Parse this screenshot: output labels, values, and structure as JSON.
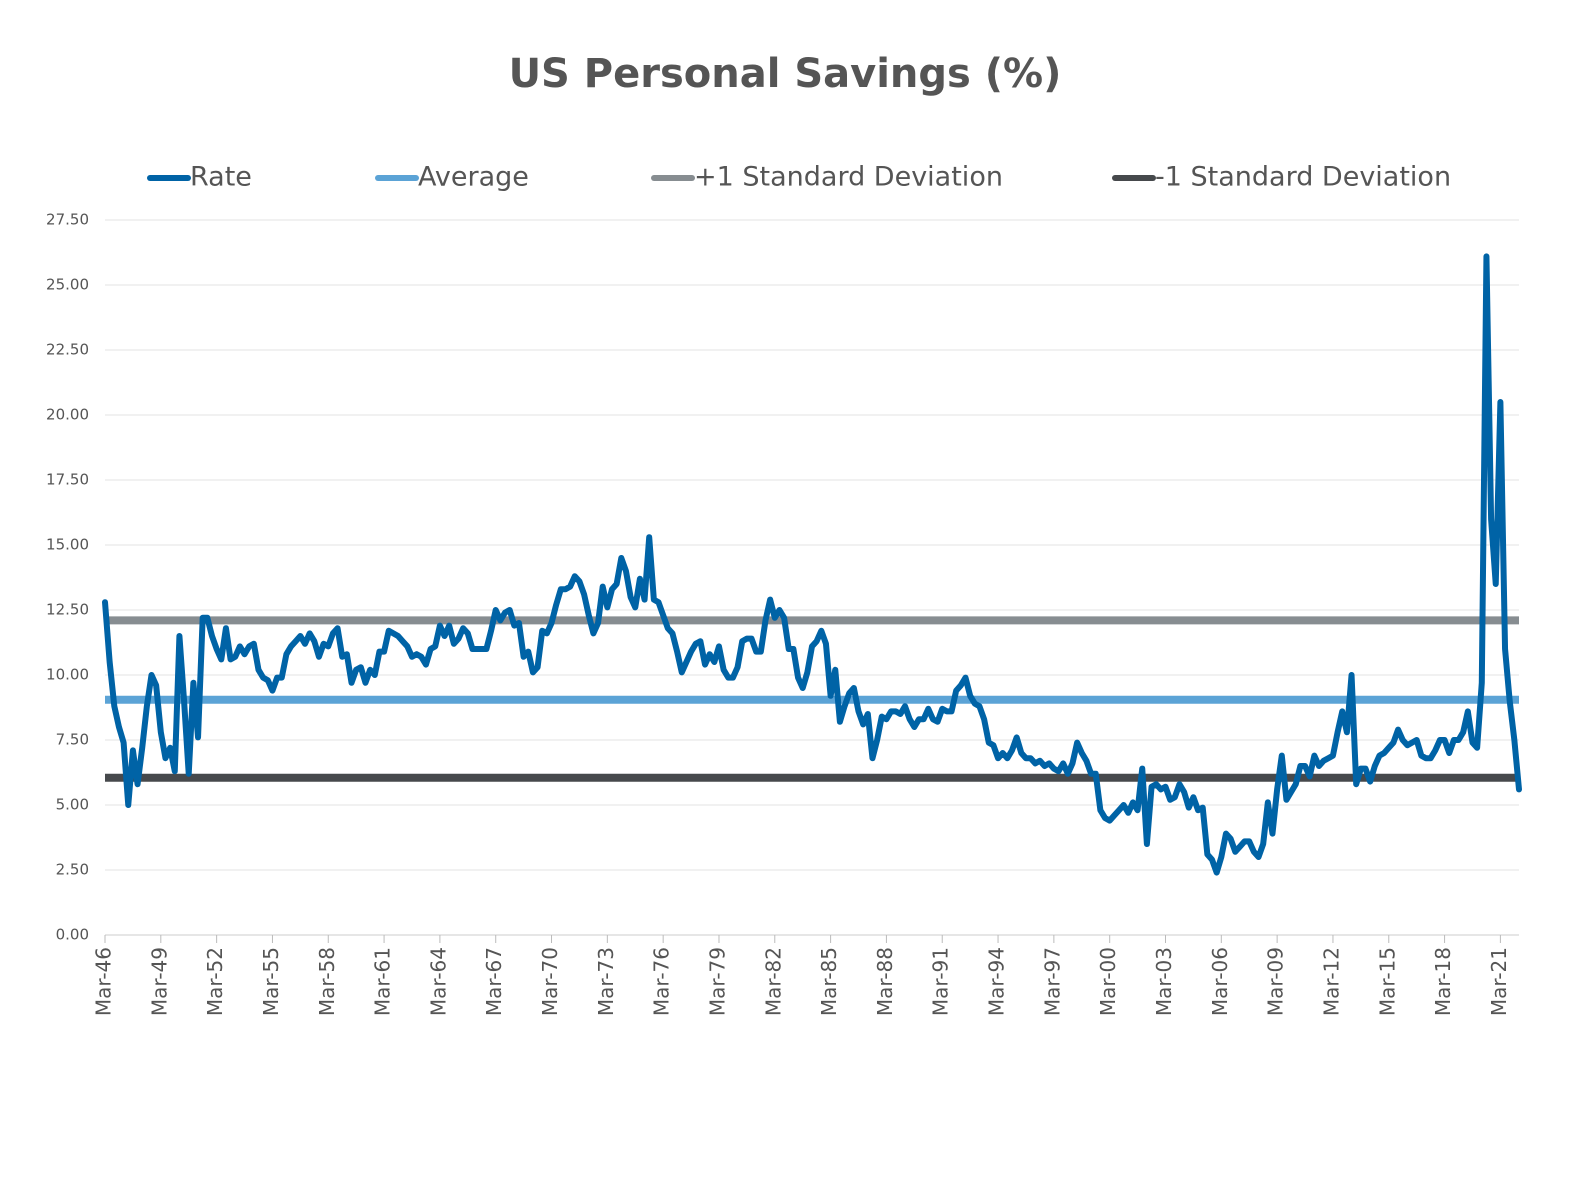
{
  "chart_data": {
    "type": "line",
    "title": "US Personal Savings (%)",
    "categories": [
      "Mar-46",
      null,
      null,
      null,
      null,
      null,
      null,
      null,
      null,
      null,
      null,
      null,
      "Mar-49",
      null,
      null,
      null,
      null,
      null,
      null,
      null,
      null,
      null,
      null,
      null,
      "Mar-52",
      null,
      null,
      null,
      null,
      null,
      null,
      null,
      null,
      null,
      null,
      null,
      "Mar-55",
      null,
      null,
      null,
      null,
      null,
      null,
      null,
      null,
      null,
      null,
      null,
      "Mar-58",
      null,
      null,
      null,
      null,
      null,
      null,
      null,
      null,
      null,
      null,
      null,
      "Mar-61",
      null,
      null,
      null,
      null,
      null,
      null,
      null,
      null,
      null,
      null,
      null,
      "Mar-64",
      null,
      null,
      null,
      null,
      null,
      null,
      null,
      null,
      null,
      null,
      null,
      "Mar-67",
      null,
      null,
      null,
      null,
      null,
      null,
      null,
      null,
      null,
      null,
      null,
      "Mar-70",
      null,
      null,
      null,
      null,
      null,
      null,
      null,
      null,
      null,
      null,
      null,
      "Mar-73",
      null,
      null,
      null,
      null,
      null,
      null,
      null,
      null,
      null,
      null,
      null,
      "Mar-76",
      null,
      null,
      null,
      null,
      null,
      null,
      null,
      null,
      null,
      null,
      null,
      "Mar-79",
      null,
      null,
      null,
      null,
      null,
      null,
      null,
      null,
      null,
      null,
      null,
      "Mar-82",
      null,
      null,
      null,
      null,
      null,
      null,
      null,
      null,
      null,
      null,
      null,
      "Mar-85",
      null,
      null,
      null,
      null,
      null,
      null,
      null,
      null,
      null,
      null,
      null,
      "Mar-88",
      null,
      null,
      null,
      null,
      null,
      null,
      null,
      null,
      null,
      null,
      null,
      "Mar-91",
      null,
      null,
      null,
      null,
      null,
      null,
      null,
      null,
      null,
      null,
      null,
      "Mar-94",
      null,
      null,
      null,
      null,
      null,
      null,
      null,
      null,
      null,
      null,
      null,
      "Mar-97",
      null,
      null,
      null,
      null,
      null,
      null,
      null,
      null,
      null,
      null,
      null,
      "Mar-00",
      null,
      null,
      null,
      null,
      null,
      null,
      null,
      null,
      null,
      null,
      null,
      "Mar-03",
      null,
      null,
      null,
      null,
      null,
      null,
      null,
      null,
      null,
      null,
      null,
      "Mar-06",
      null,
      null,
      null,
      null,
      null,
      null,
      null,
      null,
      null,
      null,
      null,
      "Mar-09",
      null,
      null,
      null,
      null,
      null,
      null,
      null,
      null,
      null,
      null,
      null,
      "Mar-12",
      null,
      null,
      null,
      null,
      null,
      null,
      null,
      null,
      null,
      null,
      null,
      "Mar-15",
      null,
      null,
      null,
      null,
      null,
      null,
      null,
      null,
      null,
      null,
      null,
      "Mar-18",
      null,
      null,
      null,
      null,
      null,
      null,
      null,
      null,
      null,
      null,
      null,
      "Mar-21",
      null,
      null,
      null,
      null
    ],
    "series": [
      {
        "name": "Rate",
        "color": "#0063a6",
        "values": [
          12.8,
          10.5,
          8.8,
          8.0,
          7.4,
          5.0,
          7.1,
          5.8,
          7.2,
          8.8,
          10.0,
          9.6,
          7.8,
          6.8,
          7.2,
          6.3,
          11.5,
          9.0,
          6.2,
          9.7,
          7.6,
          12.2,
          12.2,
          11.5,
          11.0,
          10.6,
          11.8,
          10.6,
          10.7,
          11.1,
          10.8,
          11.1,
          11.2,
          10.2,
          9.9,
          9.8,
          9.4,
          9.9,
          9.9,
          10.8,
          11.1,
          11.3,
          11.5,
          11.2,
          11.6,
          11.3,
          10.7,
          11.2,
          11.1,
          11.6,
          11.8,
          10.7,
          10.8,
          9.7,
          10.2,
          10.3,
          9.7,
          10.2,
          10.0,
          10.9,
          10.9,
          11.7,
          11.6,
          11.5,
          11.3,
          11.1,
          10.7,
          10.8,
          10.7,
          10.4,
          11.0,
          11.1,
          11.9,
          11.5,
          11.9,
          11.2,
          11.4,
          11.8,
          11.6,
          11.0,
          11.0,
          11.0,
          11.0,
          11.7,
          12.5,
          12.1,
          12.4,
          12.5,
          11.9,
          12.0,
          10.7,
          10.9,
          10.1,
          10.3,
          11.7,
          11.6,
          12.0,
          12.7,
          13.3,
          13.3,
          13.4,
          13.8,
          13.6,
          13.1,
          12.3,
          11.6,
          12.0,
          13.4,
          12.6,
          13.3,
          13.5,
          14.5,
          14.0,
          13.0,
          12.6,
          13.7,
          12.9,
          15.3,
          12.9,
          12.8,
          12.3,
          11.8,
          11.6,
          10.9,
          10.1,
          10.5,
          10.9,
          11.2,
          11.3,
          10.4,
          10.8,
          10.5,
          11.1,
          10.2,
          9.9,
          9.9,
          10.3,
          11.3,
          11.4,
          11.4,
          10.9,
          10.9,
          12.1,
          12.9,
          12.2,
          12.5,
          12.2,
          11.0,
          11.0,
          9.9,
          9.5,
          10.1,
          11.1,
          11.3,
          11.7,
          11.2,
          9.2,
          10.2,
          8.2,
          8.8,
          9.3,
          9.5,
          8.6,
          8.1,
          8.5,
          6.8,
          7.5,
          8.4,
          8.3,
          8.6,
          8.6,
          8.5,
          8.8,
          8.3,
          8.0,
          8.3,
          8.3,
          8.7,
          8.3,
          8.2,
          8.7,
          8.6,
          8.6,
          9.4,
          9.6,
          9.9,
          9.2,
          8.9,
          8.8,
          8.3,
          7.4,
          7.3,
          6.8,
          7.0,
          6.8,
          7.1,
          7.6,
          7.0,
          6.8,
          6.8,
          6.6,
          6.7,
          6.5,
          6.6,
          6.4,
          6.3,
          6.6,
          6.2,
          6.6,
          7.4,
          7.0,
          6.7,
          6.2,
          6.2,
          4.8,
          4.5,
          4.4,
          4.6,
          4.8,
          5.0,
          4.7,
          5.1,
          4.8,
          6.4,
          3.5,
          5.7,
          5.8,
          5.6,
          5.7,
          5.2,
          5.3,
          5.8,
          5.5,
          4.9,
          5.3,
          4.8,
          4.9,
          3.1,
          2.9,
          2.4,
          3.0,
          3.9,
          3.7,
          3.2,
          3.4,
          3.6,
          3.6,
          3.2,
          3.0,
          3.5,
          5.1,
          3.9,
          5.6,
          6.9,
          5.2,
          5.5,
          5.8,
          6.5,
          6.5,
          6.1,
          6.9,
          6.5,
          6.7,
          6.8,
          6.9,
          7.8,
          8.6,
          7.8,
          10.0,
          5.8,
          6.4,
          6.4,
          5.9,
          6.5,
          6.9,
          7.0,
          7.2,
          7.4,
          7.9,
          7.5,
          7.3,
          7.4,
          7.5,
          6.9,
          6.8,
          6.8,
          7.1,
          7.5,
          7.5,
          7.0,
          7.5,
          7.5,
          7.8,
          8.6,
          7.4,
          7.2,
          9.7,
          26.1,
          16.0,
          13.5,
          20.5,
          11.0,
          9.0,
          7.5,
          5.6
        ]
      }
    ],
    "reference_lines": [
      {
        "name": "Average",
        "color": "#5ba3d6",
        "value": 9.05
      },
      {
        "name": "+1 Standard Deviation",
        "color": "#878d91",
        "value": 12.1
      },
      {
        "name": "-1 Standard Deviation",
        "color": "#46494c",
        "value": 6.05
      }
    ],
    "ylim": [
      0,
      27.5
    ],
    "yticks": [
      {
        "value": 0,
        "label": "0.00"
      },
      {
        "value": 2.5,
        "label": "2.50"
      },
      {
        "value": 5,
        "label": "5.00"
      },
      {
        "value": 7.5,
        "label": "7.50"
      },
      {
        "value": 10,
        "label": "10.00"
      },
      {
        "value": 12.5,
        "label": "12.50"
      },
      {
        "value": 15,
        "label": "15.00"
      },
      {
        "value": 17.5,
        "label": "17.50"
      },
      {
        "value": 20,
        "label": "20.00"
      },
      {
        "value": 22.5,
        "label": "22.50"
      },
      {
        "value": 25,
        "label": "25.00"
      },
      {
        "value": 27.5,
        "label": "27.50"
      }
    ],
    "grid": true,
    "legend": "top"
  }
}
